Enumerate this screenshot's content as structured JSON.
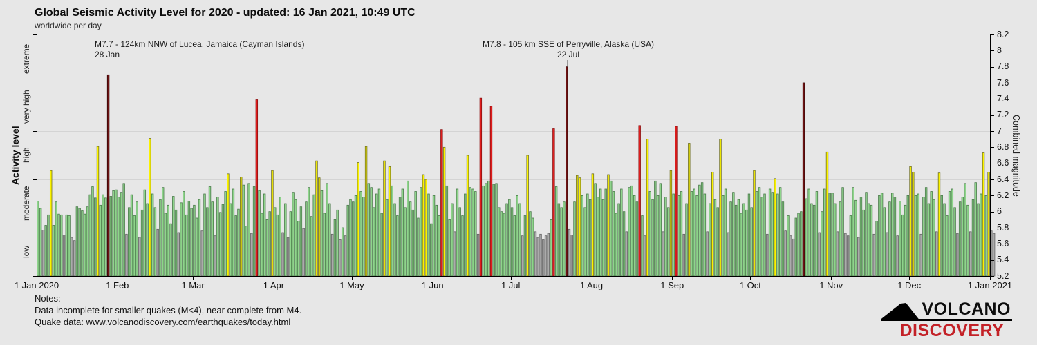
{
  "title": "Global Seismic Activity Level for 2020 - updated: 16 Jan 2021, 10:49 UTC",
  "subtitle": "worldwide per day",
  "left_axis": {
    "title": "Activity level",
    "categories": [
      "extreme",
      "very high",
      "high",
      "moderate",
      "low"
    ]
  },
  "right_axis": {
    "title": "Combined magnitude",
    "min": 5.2,
    "max": 8.2,
    "ticks": [
      "8.2",
      "8",
      "7.8",
      "7.6",
      "7.4",
      "7.2",
      "7",
      "6.8",
      "6.6",
      "6.4",
      "6.2",
      "6",
      "5.8",
      "5.6",
      "5.4",
      "5.2"
    ]
  },
  "x_axis": {
    "months": [
      {
        "label": "1 Jan 2020",
        "day": 0
      },
      {
        "label": "1 Feb",
        "day": 31
      },
      {
        "label": "1 Mar",
        "day": 60
      },
      {
        "label": "1 Apr",
        "day": 91
      },
      {
        "label": "1 May",
        "day": 121
      },
      {
        "label": "1 Jun",
        "day": 152
      },
      {
        "label": "1 Jul",
        "day": 182
      },
      {
        "label": "1 Aug",
        "day": 213
      },
      {
        "label": "1 Sep",
        "day": 244
      },
      {
        "label": "1 Oct",
        "day": 274
      },
      {
        "label": "1 Nov",
        "day": 305
      },
      {
        "label": "1 Dec",
        "day": 335
      },
      {
        "label": "1 Jan 2021",
        "day": 366
      }
    ]
  },
  "annotations": [
    {
      "line1": "M7.7 - 124km NNW of Lucea, Jamaica (Cayman Islands)",
      "line2": "28 Jan",
      "day": 27
    },
    {
      "line1": "M7.8 - 105 km SSE of Perryville, Alaska (USA)",
      "line2": "22 Jul",
      "day": 203
    }
  ],
  "notes": {
    "heading": "Notes:",
    "line1": "Data incomplete for smaller quakes (M<4), near complete from M4.",
    "line2": "Quake data: www.volcanodiscovery.com/earthquakes/today.html"
  },
  "logo": {
    "line1": "VOLCANO",
    "line2": "DISCOVERY"
  },
  "chart_data": {
    "type": "bar",
    "title": "Global Seismic Activity Level for 2020",
    "xlabel": "",
    "ylabel_left": "Activity level",
    "ylabel_right": "Combined magnitude",
    "ylim": [
      5.2,
      8.2
    ],
    "grid": "horizontal category boundaries",
    "start_date": "1 Jan 2020",
    "level_bands": {
      "low": [
        5.2,
        5.8
      ],
      "moderate": [
        5.8,
        6.4
      ],
      "high": [
        6.4,
        7.0
      ],
      "very high": [
        7.0,
        7.6
      ],
      "extreme": [
        7.6,
        8.2
      ]
    },
    "levels": [
      {
        "name": "low",
        "max": 5.8,
        "fill": "#ababab",
        "stroke": "#636363"
      },
      {
        "name": "moderate",
        "max": 6.4,
        "fill": "#8fd48c",
        "stroke": "#4a7a4a"
      },
      {
        "name": "high",
        "max": 7.0,
        "fill": "#fbf301",
        "stroke": "#6f6f24"
      },
      {
        "name": "very high",
        "max": 7.6,
        "fill": "#df1d1d",
        "stroke": "#8c1010"
      },
      {
        "name": "extreme",
        "max": 9.9,
        "fill": "#6f1313",
        "stroke": "#320707"
      }
    ],
    "values": [
      6.13,
      6.04,
      5.77,
      5.83,
      5.96,
      6.51,
      5.83,
      6.12,
      5.97,
      5.96,
      5.71,
      5.96,
      5.95,
      5.68,
      5.64,
      6.06,
      6.04,
      6.01,
      5.97,
      6.06,
      6.21,
      6.31,
      6.17,
      6.81,
      6.08,
      6.21,
      6.17,
      7.7,
      6.19,
      6.26,
      6.27,
      6.18,
      6.24,
      6.35,
      5.72,
      6.05,
      6.21,
      5.95,
      6.12,
      5.68,
      6.02,
      6.27,
      6.1,
      6.91,
      6.22,
      6.05,
      5.78,
      6.15,
      6.3,
      5.98,
      6.08,
      5.85,
      6.19,
      6.02,
      5.74,
      6.11,
      6.25,
      5.96,
      6.13,
      6.04,
      6.08,
      5.92,
      6.15,
      5.76,
      6.22,
      6.05,
      6.31,
      6.12,
      5.7,
      6.18,
      5.99,
      6.09,
      6.25,
      6.47,
      6.1,
      6.28,
      5.95,
      6.03,
      6.43,
      6.33,
      5.82,
      6.35,
      5.73,
      6.31,
      7.39,
      6.26,
      5.98,
      6.22,
      5.9,
      6.0,
      6.51,
      6.05,
      5.96,
      6.18,
      5.74,
      6.1,
      5.68,
      6.0,
      6.24,
      6.15,
      5.88,
      6.06,
      5.79,
      6.12,
      6.3,
      5.94,
      6.21,
      6.63,
      6.42,
      6.26,
      5.98,
      6.35,
      6.1,
      5.72,
      5.9,
      6.02,
      5.65,
      5.8,
      5.7,
      6.08,
      6.15,
      6.12,
      6.2,
      6.61,
      6.25,
      6.18,
      6.81,
      6.35,
      6.3,
      6.05,
      6.22,
      6.28,
      5.98,
      6.63,
      6.15,
      6.56,
      6.32,
      6.1,
      5.95,
      6.18,
      6.28,
      6.05,
      6.38,
      6.12,
      6.02,
      6.25,
      5.92,
      6.3,
      6.46,
      6.4,
      6.22,
      5.85,
      6.2,
      6.08,
      5.95,
      7.02,
      6.8,
      6.32,
      5.9,
      6.1,
      5.75,
      6.28,
      6.05,
      5.95,
      6.22,
      6.7,
      6.3,
      6.28,
      6.25,
      5.72,
      7.41,
      6.32,
      6.35,
      6.38,
      7.31,
      6.34,
      6.35,
      6.05,
      6.0,
      5.98,
      6.1,
      6.15,
      6.05,
      5.95,
      6.2,
      6.1,
      5.7,
      5.95,
      6.7,
      6.0,
      5.92,
      5.75,
      5.68,
      5.72,
      5.65,
      5.7,
      5.73,
      5.9,
      7.03,
      6.31,
      6.1,
      6.05,
      6.12,
      7.8,
      5.78,
      5.71,
      6.12,
      6.45,
      6.42,
      6.2,
      6.05,
      6.22,
      6.15,
      6.47,
      6.35,
      6.18,
      6.28,
      6.15,
      6.28,
      6.46,
      6.38,
      6.25,
      5.98,
      6.1,
      6.28,
      6.0,
      5.75,
      6.3,
      6.32,
      6.2,
      6.12,
      7.07,
      5.95,
      5.7,
      6.9,
      6.25,
      6.15,
      6.38,
      6.2,
      6.35,
      5.75,
      6.18,
      6.05,
      6.51,
      6.22,
      7.06,
      6.2,
      6.25,
      5.72,
      6.1,
      6.85,
      6.25,
      6.28,
      6.2,
      6.33,
      6.36,
      6.22,
      5.75,
      6.1,
      6.49,
      6.15,
      6.05,
      6.9,
      6.2,
      6.28,
      5.74,
      6.12,
      6.24,
      6.08,
      6.15,
      5.98,
      6.1,
      6.02,
      6.22,
      6.05,
      6.51,
      6.25,
      6.3,
      6.18,
      6.22,
      5.72,
      6.28,
      6.24,
      6.41,
      6.22,
      6.3,
      6.12,
      5.76,
      5.95,
      5.7,
      5.66,
      5.92,
      5.98,
      6.0,
      7.6,
      6.16,
      6.28,
      6.1,
      6.08,
      6.25,
      5.74,
      6.0,
      6.28,
      6.74,
      6.23,
      6.23,
      6.1,
      5.75,
      6.12,
      6.3,
      5.73,
      5.7,
      5.95,
      6.3,
      6.14,
      5.68,
      6.18,
      6.02,
      6.24,
      6.1,
      6.08,
      5.72,
      5.88,
      6.2,
      6.23,
      6.05,
      5.74,
      6.12,
      6.23,
      6.18,
      5.7,
      6.13,
      5.96,
      6.08,
      6.2,
      6.56,
      6.49,
      6.2,
      6.22,
      5.72,
      6.18,
      6.3,
      6.1,
      6.25,
      6.15,
      5.75,
      6.48,
      6.2,
      6.1,
      5.95,
      6.25,
      6.28,
      6.05,
      5.73,
      6.12,
      6.18,
      6.35,
      6.08,
      5.75,
      6.15,
      6.36,
      6.1,
      6.22,
      6.73,
      6.2,
      6.49,
      5.76,
      5.73
    ]
  }
}
